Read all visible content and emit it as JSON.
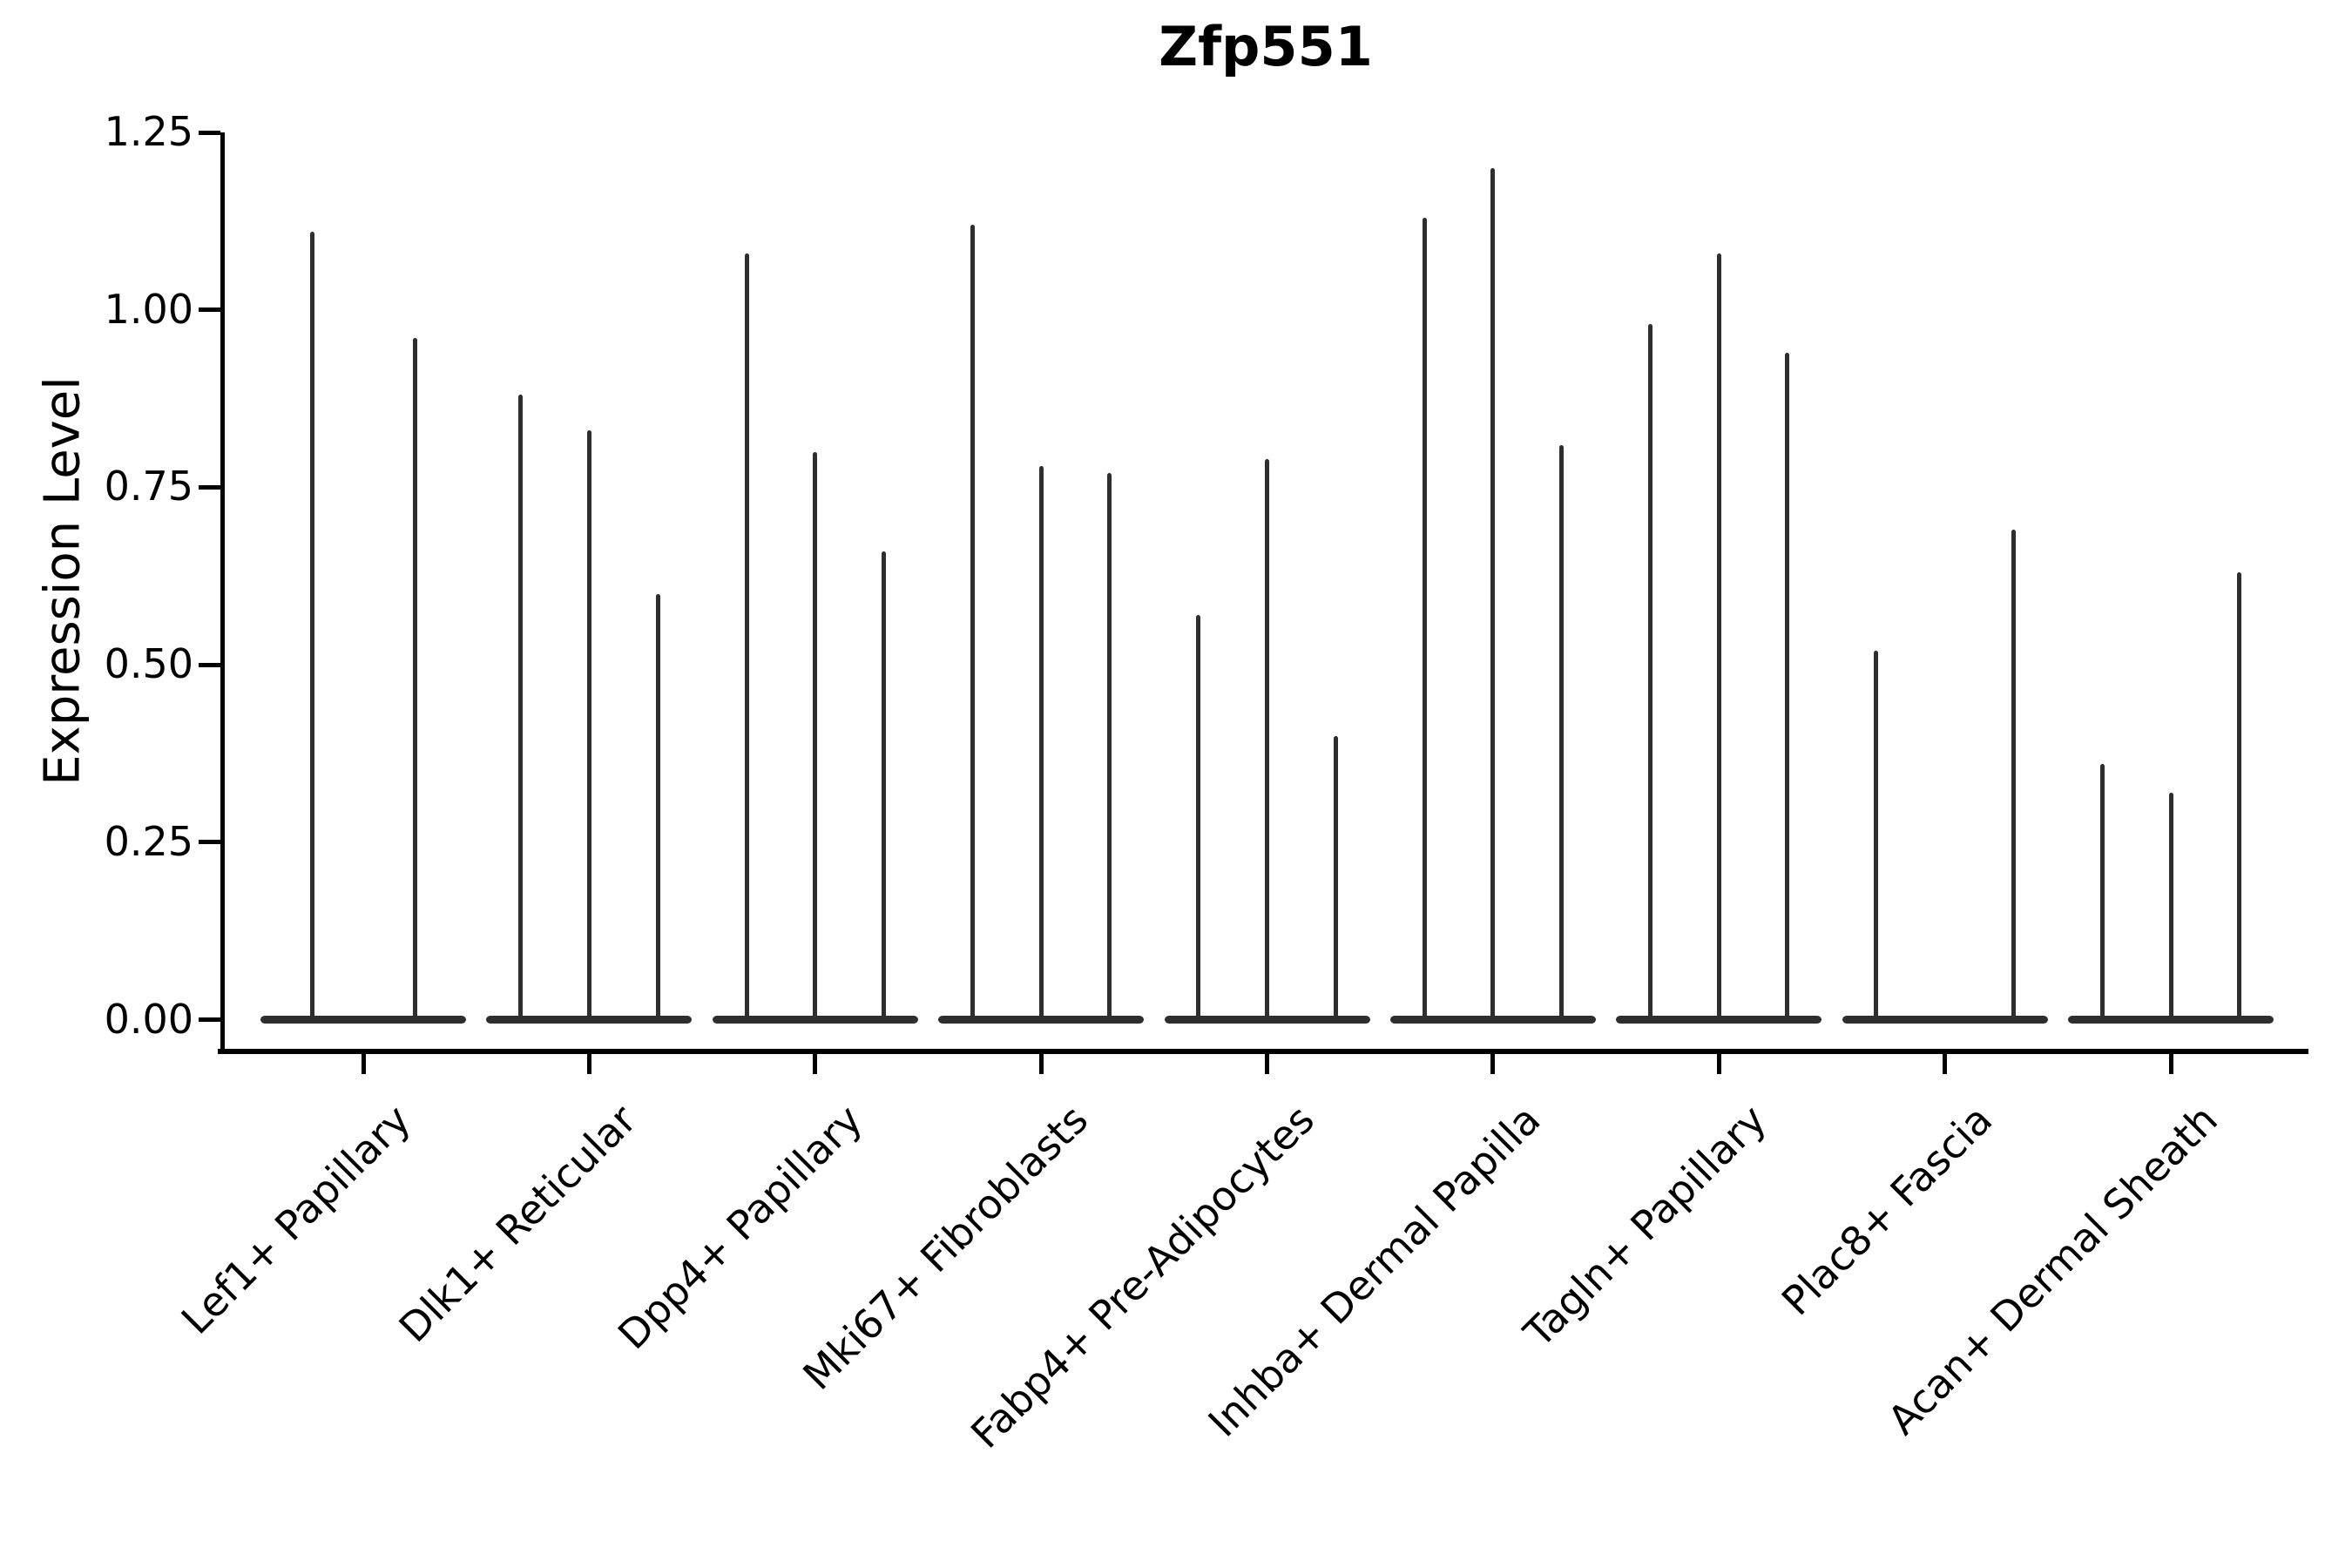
{
  "chart_data": {
    "type": "violin",
    "title": "Zfp551",
    "ylabel": "Expression Level",
    "xlabel": "",
    "ylim": [
      0,
      1.25
    ],
    "ytick_values": [
      0,
      0.25,
      0.5,
      0.75,
      1.0,
      1.25
    ],
    "ytick_labels": [
      "0.00",
      "0.25",
      "0.50",
      "0.75",
      "1.00",
      "1.25"
    ],
    "grid": false,
    "legend": null,
    "categories": [
      "Lef1+ Papillary",
      "Dlk1+ Reticular",
      "Dpp4+ Papillary",
      "Mki67+ Fibroblasts",
      "Fabp4+ Pre-Adipocytes",
      "Inhba+ Dermal Papilla",
      "Tagln+ Papillary",
      "Plac8+ Fascia",
      "Acan+ Dermal Sheath"
    ],
    "violin_note": "each category holds 2-3 narrow violins; value = max expression reached by the spike; null = violin with only a flat zero base (no spike)",
    "violins": [
      [
        1.11,
        0.96
      ],
      [
        0.88,
        0.83,
        0.6
      ],
      [
        1.08,
        0.8,
        0.66
      ],
      [
        1.12,
        0.78,
        0.77
      ],
      [
        0.57,
        0.79,
        0.4
      ],
      [
        1.13,
        1.2,
        0.81
      ],
      [
        0.98,
        1.08,
        0.94
      ],
      [
        0.52,
        null,
        0.69
      ],
      [
        0.36,
        0.32,
        0.63
      ]
    ],
    "baseline_value": 0.0,
    "colors": {
      "violin": "#2e2e2e",
      "axis": "#000000",
      "text": "#000000",
      "background": "#ffffff"
    }
  }
}
